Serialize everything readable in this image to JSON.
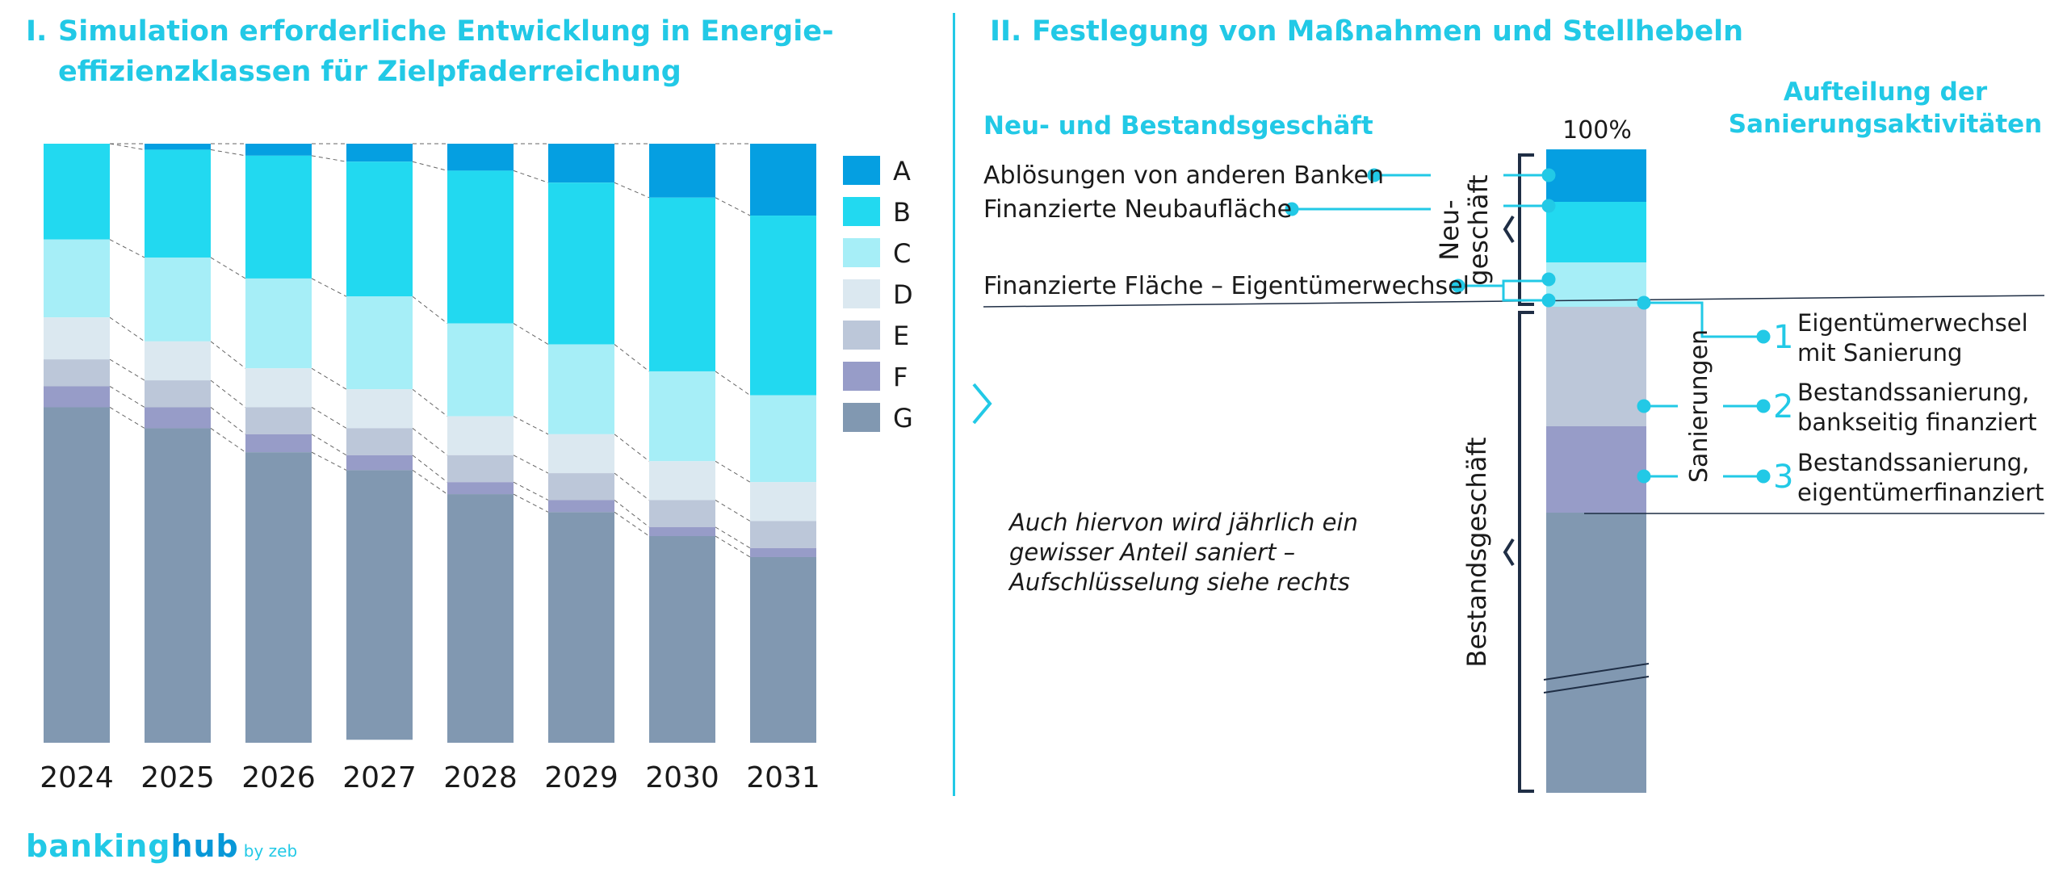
{
  "titles": {
    "left_num": "I.",
    "left_line1": "Simulation erforderliche Entwicklung in Energie-",
    "left_line2": "effizienzklassen für Zielpfaderreichung",
    "right_num": "II.",
    "right": "Festlegung von Maßnahmen und Stellhebeln"
  },
  "colors": {
    "A": "#059fe1",
    "B": "#22d9f0",
    "C": "#a6eef7",
    "D": "#dbe8f0",
    "E": "#bcc7d9",
    "F": "#979cc8",
    "G": "#8198b1",
    "accent": "#22c9e6",
    "dark": "#1f2e45"
  },
  "chart_data": {
    "type": "bar",
    "stacked": true,
    "normalized": true,
    "categories": [
      "2024",
      "2025",
      "2026",
      "2027",
      "2028",
      "2029",
      "2030",
      "2031"
    ],
    "series": [
      {
        "name": "A",
        "values": [
          0,
          1,
          2,
          3,
          4.5,
          6.5,
          9,
          12
        ]
      },
      {
        "name": "B",
        "values": [
          16,
          18,
          20.5,
          22.5,
          25.5,
          27,
          29,
          30
        ]
      },
      {
        "name": "C",
        "values": [
          13,
          14,
          15,
          15.5,
          15.5,
          15,
          15,
          14.5
        ]
      },
      {
        "name": "D",
        "values": [
          7,
          6.5,
          6.5,
          6.5,
          6.5,
          6.5,
          6.5,
          6.5
        ]
      },
      {
        "name": "E",
        "values": [
          4.5,
          4.5,
          4.5,
          4.5,
          4.5,
          4.5,
          4.5,
          4.5
        ]
      },
      {
        "name": "F",
        "values": [
          3.5,
          3.5,
          3,
          2.5,
          2,
          2,
          1.5,
          1.5
        ]
      },
      {
        "name": "G",
        "values": [
          56,
          52.5,
          48.5,
          45,
          41.5,
          38.5,
          34.5,
          31
        ]
      }
    ],
    "ylim": [
      0,
      100
    ],
    "legend": "right",
    "grid": false
  },
  "diagram": {
    "section_left_title": "Neu- und Bestandsgeschäft",
    "section_right_title_1": "Aufteilung der",
    "section_right_title_2": "Sanierungsaktivitäten",
    "pct_label": "100%",
    "item_abloesungen": "Ablösungen von anderen Banken",
    "item_neubau": "Finanzierte Neubaufläche",
    "item_eigentuemer": "Finanzierte Fläche – Eigentümerwechsel",
    "neu_label_1": "Neu-",
    "neu_label_2": "geschäft",
    "bestand_label": "Bestandsgeschäft",
    "sanierungen_label": "Sanierungen",
    "note_1": "Auch hiervon wird jährlich ein",
    "note_2": "gewisser Anteil saniert –",
    "note_3": "Aufschlüsselung siehe rechts",
    "steps": [
      {
        "num": "1",
        "line1": "Eigentümerwechsel",
        "line2": "mit Sanierung"
      },
      {
        "num": "2",
        "line1": "Bestandssanierung,",
        "line2": "bankseitig finanziert"
      },
      {
        "num": "3",
        "line1": "Bestandssanierung,",
        "line2": "eigentümerfinanziert"
      }
    ]
  },
  "logo": {
    "part1": "banking",
    "part2": "hub",
    "part3": "by zeb"
  }
}
